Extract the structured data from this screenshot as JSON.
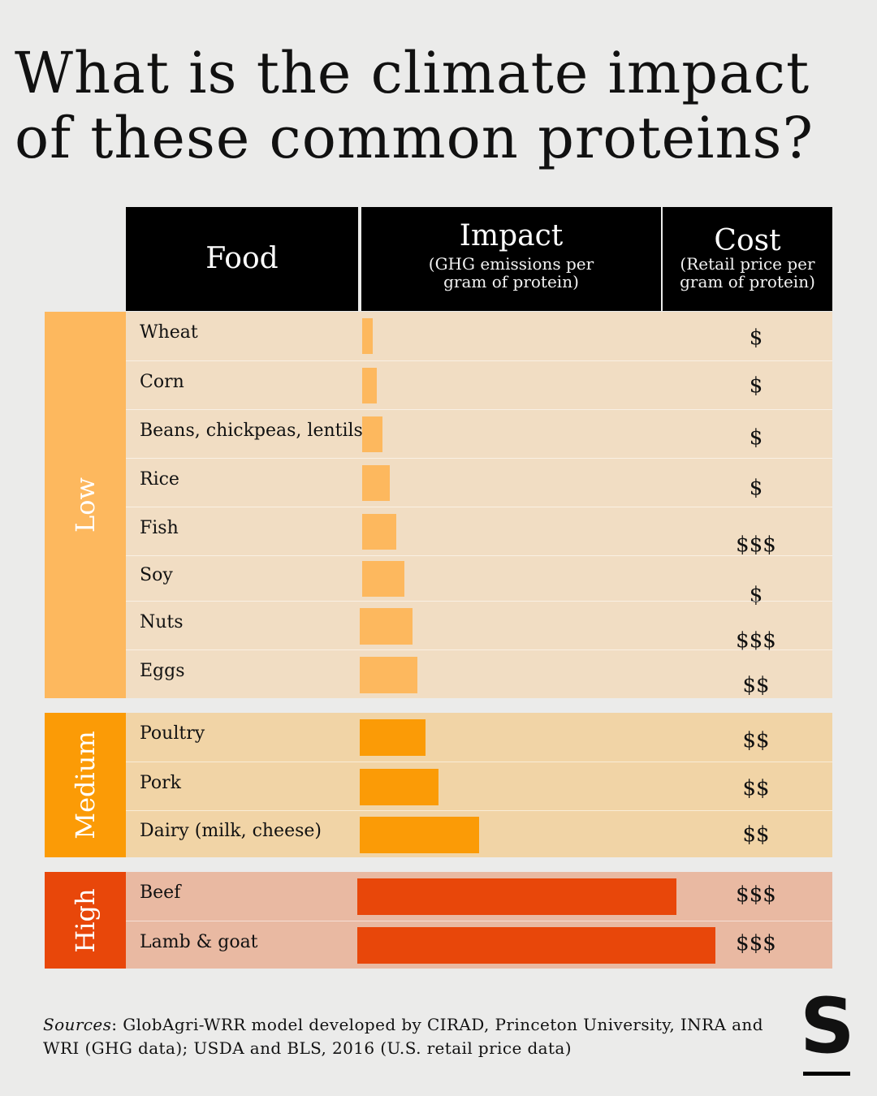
{
  "title_line1": "What is the climate impact",
  "title_line2": "of these common proteins?",
  "headers": {
    "food": "Food",
    "impact": "Impact",
    "impact_sub1": "(GHG emissions per",
    "impact_sub2": "gram of protein)",
    "cost": "Cost",
    "cost_sub1": "(Retail price per",
    "cost_sub2": "gram of protein)"
  },
  "bands": {
    "low": "Low",
    "medium": "Medium",
    "high": "High"
  },
  "colors": {
    "low_band": "#fdb85e",
    "low_panel": "#f1ddc3",
    "low_bar": "#fdb85e",
    "medium_band": "#fb9b06",
    "medium_panel": "#f1d4a6",
    "medium_bar": "#fb9b06",
    "high_band": "#e8470a",
    "high_panel": "#e9b9a2",
    "high_bar": "#e8470a"
  },
  "chart_data": {
    "type": "bar",
    "orientation": "horizontal",
    "axis_scale": "relative (no numeric axis shown)",
    "categories": [
      "Wheat",
      "Corn",
      "Beans, chickpeas, lentils",
      "Rice",
      "Fish",
      "Soy",
      "Nuts",
      "Eggs",
      "Poultry",
      "Pork",
      "Dairy (milk, cheese)",
      "Beef",
      "Lamb & goat"
    ],
    "impact_values": [
      13,
      18,
      25,
      34,
      42,
      52,
      65,
      71,
      81,
      97,
      147,
      393,
      441
    ],
    "groups": [
      "Low",
      "Low",
      "Low",
      "Low",
      "Low",
      "Low",
      "Low",
      "Low",
      "Medium",
      "Medium",
      "Medium",
      "High",
      "High"
    ],
    "cost": [
      "$",
      "$",
      "$",
      "$",
      "$$$",
      "$",
      "$$$",
      "$$",
      "$$",
      "$$",
      "$$",
      "$$$",
      "$$$"
    ]
  },
  "sources_label": "Sources",
  "sources_text": ": GlobAgri-WRR model developed by CIRAD, Princeton University, INRA and WRI (GHG data); USDA and BLS, 2016 (U.S. retail price data)",
  "logo_letter": "S"
}
